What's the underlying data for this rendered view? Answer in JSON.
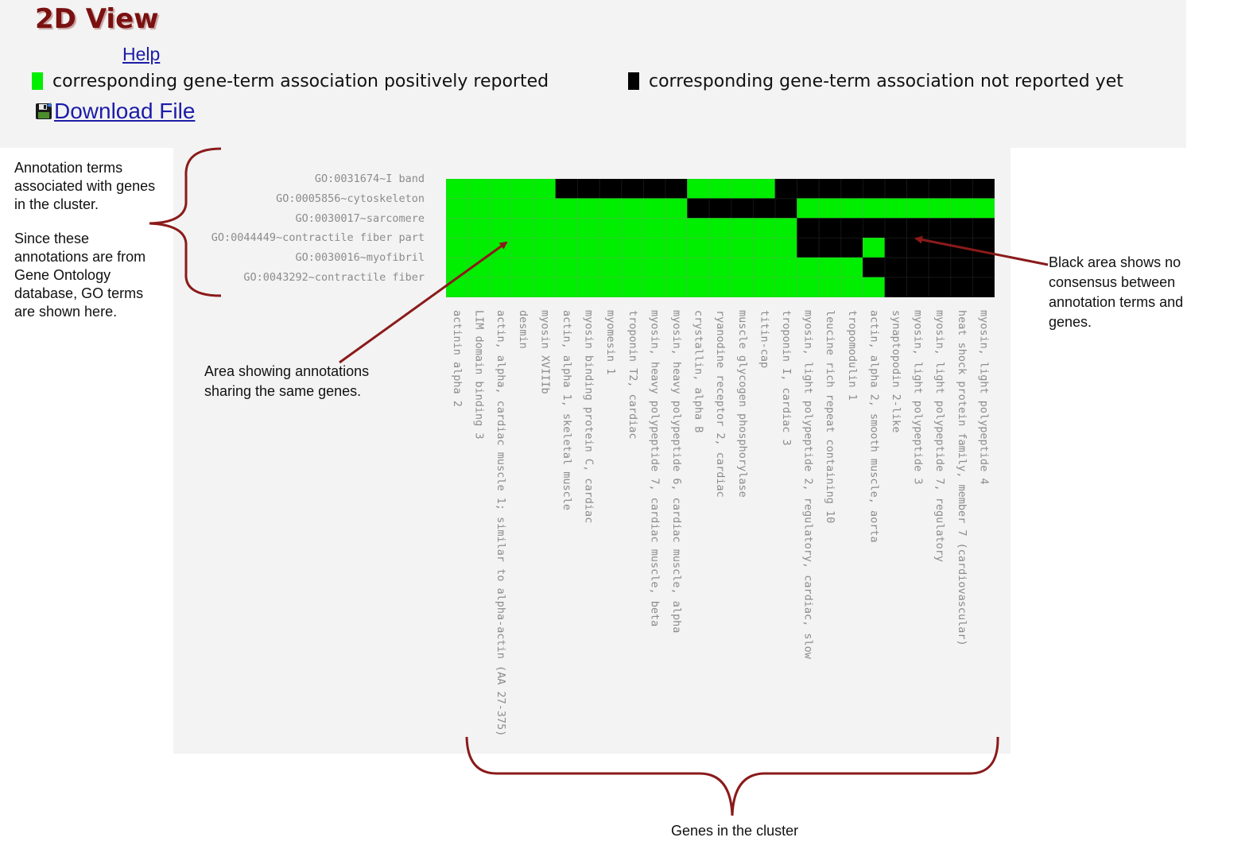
{
  "header": {
    "title": "2D View",
    "help_label": "Help",
    "download_label": "Download File"
  },
  "legend": [
    {
      "label": "corresponding gene-term association positively reported",
      "color": "#00ee00"
    },
    {
      "label": "corresponding gene-term association not reported yet",
      "color": "#000000"
    }
  ],
  "terms": [
    "GO:0031674~I band",
    "GO:0005856~cytoskeleton",
    "GO:0030017~sarcomere",
    "GO:0044449~contractile fiber part",
    "GO:0030016~myofibril",
    "GO:0043292~contractile fiber"
  ],
  "genes": [
    "actinin alpha 2",
    "LIM domain binding 3",
    "actin, alpha, cardiac muscle 1; similar to alpha-actin (AA 27-375)",
    "desmin",
    "myosin XVIIIb",
    "actin, alpha 1, skeletal muscle",
    "myosin binding protein C, cardiac",
    "myomesin 1",
    "troponin T2, cardiac",
    "myosin, heavy polypeptide 7, cardiac muscle, beta",
    "myosin, heavy polypeptide 6, cardiac muscle, alpha",
    "crystallin, alpha B",
    "ryanodine receptor 2, cardiac",
    "muscle glycogen phosphorylase",
    "titin-cap",
    "troponin I, cardiac 3",
    "myosin, light polypeptide 2, regulatory, cardiac, slow",
    "leucine rich repeat containing 10",
    "tropomodulin 1",
    "actin, alpha 2, smooth muscle, aorta",
    "synaptopodin 2-like",
    "myosin, light polypeptide 3",
    "myosin, light polypeptide 7, regulatory",
    "heat shock protein family, member 7 (cardiovascular)",
    "myosin, light polypeptide 4"
  ],
  "matrix": [
    [
      1,
      1,
      1,
      1,
      1,
      0,
      0,
      0,
      0,
      0,
      0,
      1,
      1,
      1,
      1,
      0,
      0,
      0,
      0,
      0,
      0,
      0,
      0,
      0,
      0
    ],
    [
      1,
      1,
      1,
      1,
      1,
      1,
      1,
      1,
      1,
      1,
      1,
      0,
      0,
      0,
      0,
      0,
      1,
      1,
      1,
      1,
      1,
      1,
      1,
      1,
      1
    ],
    [
      1,
      1,
      1,
      1,
      1,
      1,
      1,
      1,
      1,
      1,
      1,
      1,
      1,
      1,
      1,
      1,
      0,
      0,
      0,
      0,
      0,
      0,
      0,
      0,
      0
    ],
    [
      1,
      1,
      1,
      1,
      1,
      1,
      1,
      1,
      1,
      1,
      1,
      1,
      1,
      1,
      1,
      1,
      0,
      0,
      0,
      1,
      0,
      0,
      0,
      0,
      0
    ],
    [
      1,
      1,
      1,
      1,
      1,
      1,
      1,
      1,
      1,
      1,
      1,
      1,
      1,
      1,
      1,
      1,
      1,
      1,
      1,
      0,
      0,
      0,
      0,
      0,
      0
    ],
    [
      1,
      1,
      1,
      1,
      1,
      1,
      1,
      1,
      1,
      1,
      1,
      1,
      1,
      1,
      1,
      1,
      1,
      1,
      1,
      1,
      0,
      0,
      0,
      0,
      0
    ]
  ],
  "colors": {
    "positive": "#00ee00",
    "negative": "#000000",
    "callout": "#8b1a1a",
    "title": "#7a1010"
  },
  "annotations": {
    "terms_note_1": "Annotation terms associated with genes in the cluster.",
    "terms_note_2": "Since these annotations are from Gene Ontology database, GO terms are shown here.",
    "shared_note": "Area showing annotations sharing the same genes.",
    "black_note": "Black area shows no consensus between annotation terms and genes.",
    "genes_note": "Genes in the cluster"
  }
}
